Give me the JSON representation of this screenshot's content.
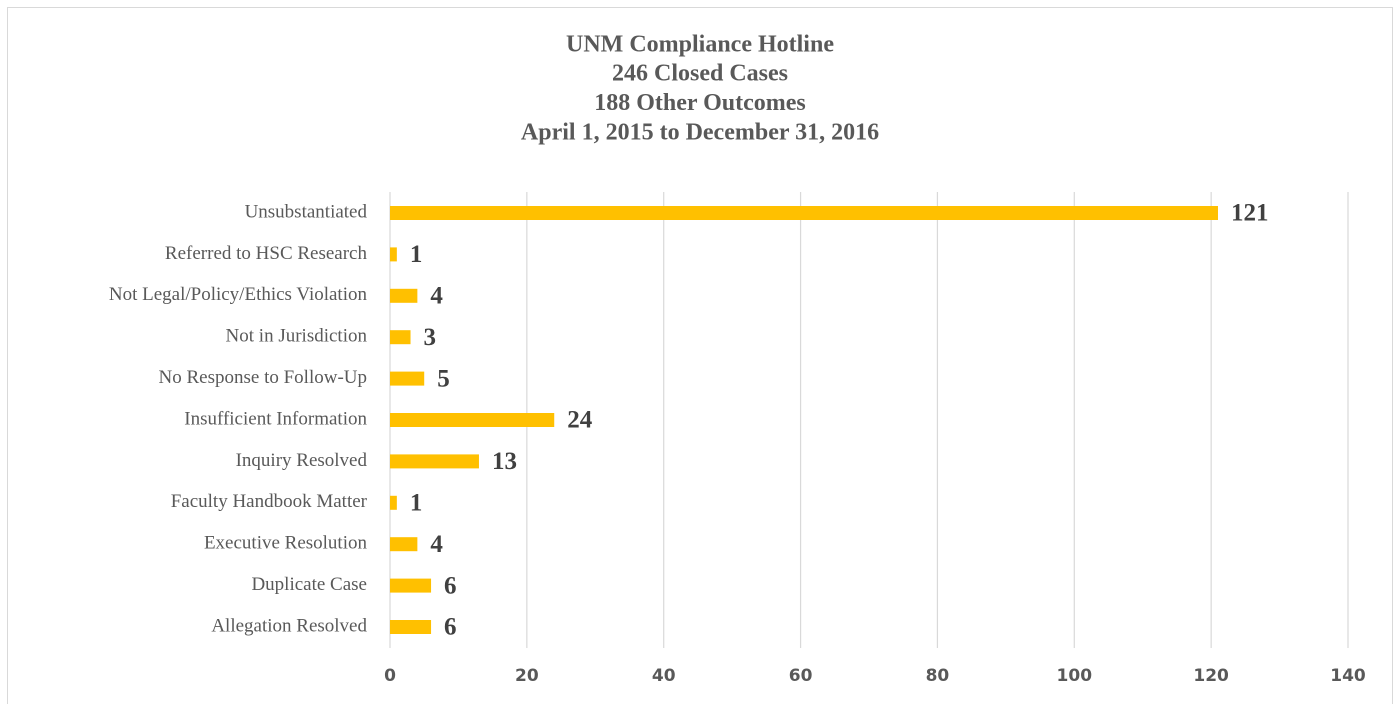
{
  "chart_data": {
    "type": "hbar",
    "title": "UNM Compliance Hotline",
    "subtitle": [
      "246 Closed Cases",
      "188 Other Outcomes",
      "April 1, 2015 to December 31, 2016"
    ],
    "categories": [
      "Unsubstantiated",
      "Referred to HSC Research",
      "Not Legal/Policy/Ethics Violation",
      "Not in Jurisdiction",
      "No Response to Follow-Up",
      "Insufficient Information",
      "Inquiry Resolved",
      "Faculty Handbook Matter",
      "Executive Resolution",
      "Duplicate Case",
      "Allegation Resolved"
    ],
    "values": [
      121,
      1,
      4,
      3,
      5,
      24,
      13,
      1,
      4,
      6,
      6
    ],
    "color": "#ffc000",
    "xlim": [
      0,
      140
    ],
    "xticks": [
      0,
      20,
      40,
      60,
      80,
      100,
      120,
      140
    ],
    "grid": true
  }
}
